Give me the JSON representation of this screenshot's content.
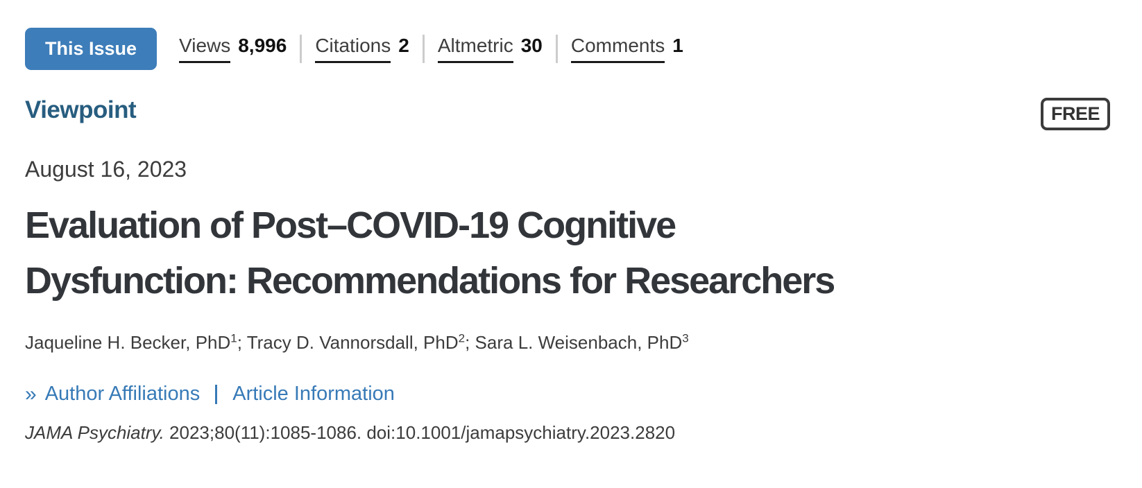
{
  "toolbar": {
    "this_issue_label": "This Issue",
    "metrics": [
      {
        "label": "Views",
        "value": "8,996"
      },
      {
        "label": "Citations",
        "value": "2"
      },
      {
        "label": "Altmetric",
        "value": "30"
      },
      {
        "label": "Comments",
        "value": "1"
      }
    ]
  },
  "article": {
    "category": "Viewpoint",
    "access_badge": "FREE",
    "date": "August 16, 2023",
    "title_lines": [
      "Evaluation of Post–COVID-19 Cognitive",
      "Dysfunction: Recommendations for Researchers"
    ],
    "authors": [
      {
        "name": "Jaqueline H. Becker, PhD",
        "sup": "1",
        "sep": "; "
      },
      {
        "name": "Tracy D. Vannorsdall, PhD",
        "sup": "2",
        "sep": "; "
      },
      {
        "name": "Sara L. Weisenbach, PhD",
        "sup": "3",
        "sep": ""
      }
    ],
    "links": {
      "icon": "»",
      "author_affiliations": "Author Affiliations",
      "article_information": "Article Information"
    },
    "citation": {
      "journal": "JAMA Psychiatry.",
      "rest": " 2023;80(11):1085-1086. doi:10.1001/jamapsychiatry.2023.2820"
    }
  },
  "colors": {
    "button_blue": "#3d7db9",
    "category_blue": "#275d7f",
    "link_blue": "#377ab7",
    "title_charcoal": "#323539"
  }
}
